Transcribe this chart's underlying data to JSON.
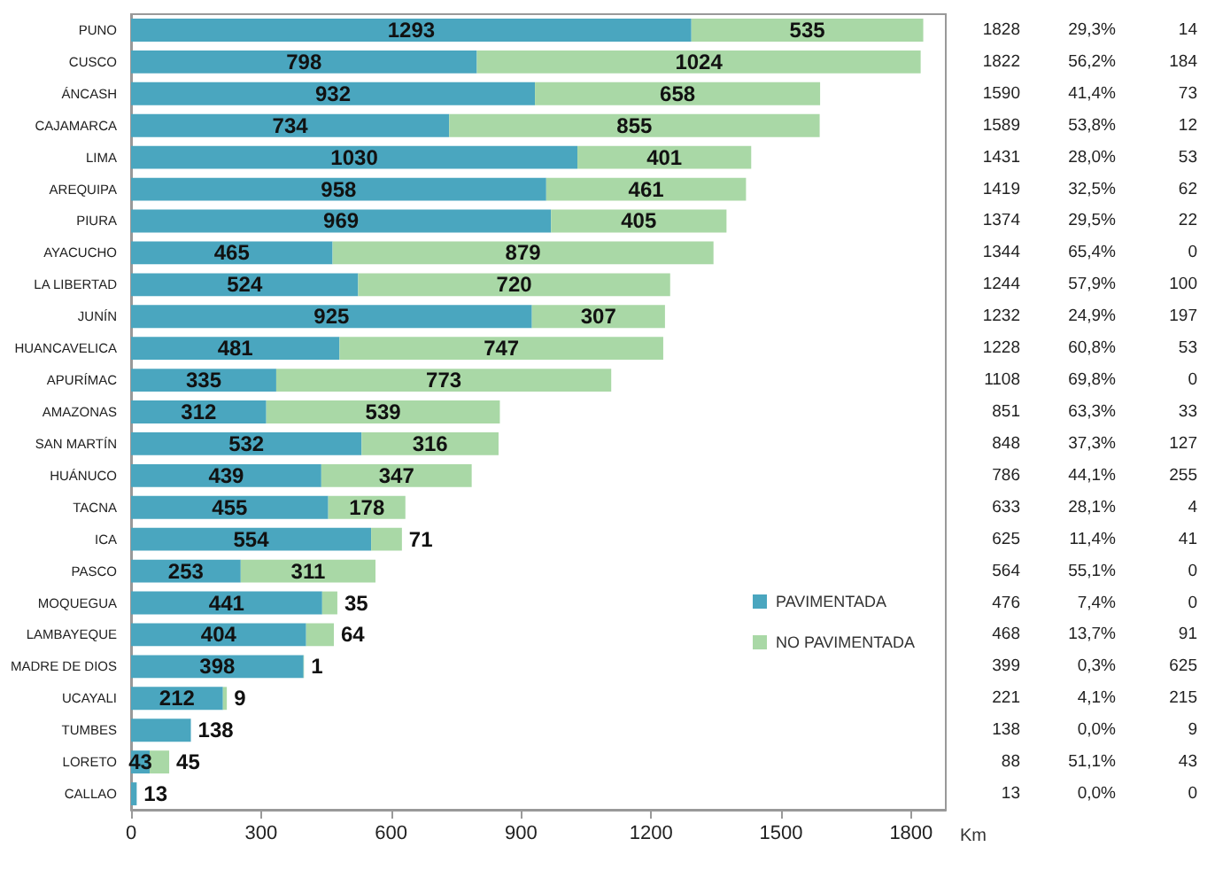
{
  "chart_data": {
    "type": "bar",
    "orientation": "horizontal",
    "stacked": true,
    "categories": [
      "PUNO",
      "CUSCO",
      "ÁNCASH",
      "CAJAMARCA",
      "LIMA",
      "AREQUIPA",
      "PIURA",
      "AYACUCHO",
      "LA LIBERTAD",
      "JUNÍN",
      "HUANCAVELICA",
      "APURÍMAC",
      "AMAZONAS",
      "SAN MARTÍN",
      "HUÁNUCO",
      "TACNA",
      "ICA",
      "PASCO",
      "MOQUEGUA",
      "LAMBAYEQUE",
      "MADRE DE DIOS",
      "UCAYALI",
      "TUMBES",
      "LORETO",
      "CALLAO"
    ],
    "series": [
      {
        "name": "PAVIMENTADA",
        "color": "#4aa6bf",
        "values": [
          1293,
          798,
          932,
          734,
          1030,
          958,
          969,
          465,
          524,
          925,
          481,
          335,
          312,
          532,
          439,
          455,
          554,
          253,
          441,
          404,
          398,
          212,
          138,
          43,
          13
        ]
      },
      {
        "name": "NO PAVIMENTADA",
        "color": "#a9d8a6",
        "values": [
          535,
          1024,
          658,
          855,
          401,
          461,
          405,
          879,
          720,
          307,
          747,
          773,
          539,
          316,
          347,
          178,
          71,
          311,
          35,
          64,
          1,
          9,
          null,
          45,
          null
        ]
      }
    ],
    "xlim": [
      0,
      1880
    ],
    "xticks": [
      0,
      300,
      600,
      900,
      1200,
      1500,
      1800
    ],
    "xlabel": "Km",
    "data_labels": true,
    "legend": "right",
    "annotations": [
      "1828",
      "1822",
      "1590",
      "1589",
      "1431",
      "1419",
      "1374",
      "1344",
      "1244",
      "1232",
      "1228",
      "1108",
      "851",
      "848",
      "786",
      "633",
      "625",
      "564",
      "476",
      "468",
      "399",
      "221",
      "138",
      "88",
      "13",
      "29,3%",
      "56,2%",
      "41,4%",
      "53,8%",
      "28,0%",
      "32,5%",
      "29,5%",
      "65,4%",
      "57,9%",
      "24,9%",
      "60,8%",
      "69,8%",
      "63,3%",
      "37,3%",
      "44,1%",
      "28,1%",
      "11,4%",
      "55,1%",
      "7,4%",
      "13,7%",
      "0,3%",
      "4,1%",
      "0,0%",
      "51,1%",
      "0,0%",
      "14",
      "184",
      "73",
      "12",
      "53",
      "62",
      "22",
      "0",
      "100",
      "197",
      "53",
      "0",
      "33",
      "127",
      "255",
      "4",
      "41",
      "0",
      "0",
      "91",
      "625",
      "215",
      "9",
      "43",
      "0"
    ]
  }
}
